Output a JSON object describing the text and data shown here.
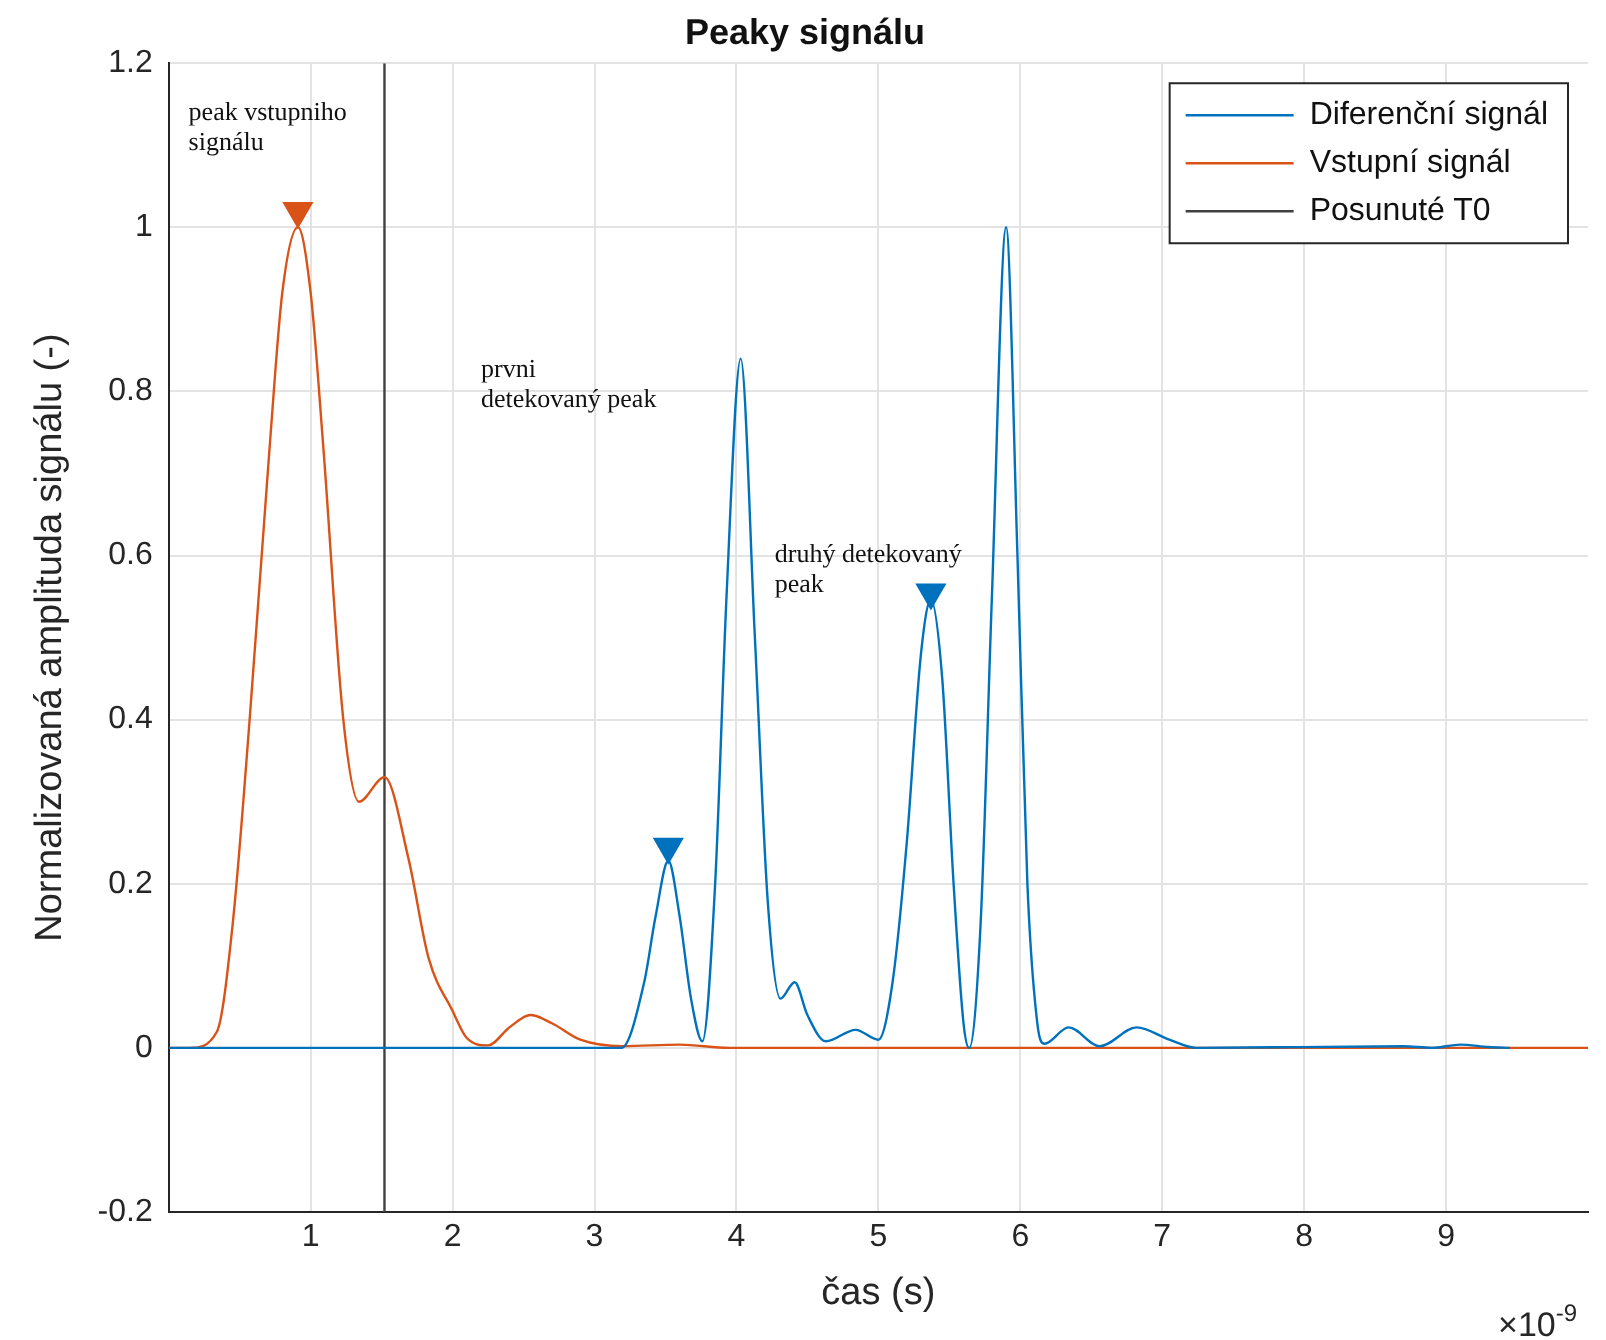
{
  "chart_data": {
    "type": "line",
    "title": "Peaky signálu",
    "xlabel": "čas (s)",
    "ylabel": "Normalizovaná amplituda signálu (-)",
    "xlim": [
      0,
      10
    ],
    "xticks": [
      1,
      2,
      3,
      4,
      5,
      6,
      7,
      8,
      9
    ],
    "ylim": [
      -0.2,
      1.2
    ],
    "yticks": [
      -0.2,
      0,
      0.2,
      0.4,
      0.6,
      0.8,
      1,
      1.2
    ],
    "grid": true,
    "legend": "top right",
    "line_style": "solid",
    "annotations": [
      "peak vstupniho\nsignálu",
      "prvni\ndetekovaný peak",
      "druhý detekovaný\npeak",
      "×10$^{-9}$"
    ],
    "series": [
      {
        "name": "Diferenční signál",
        "color": "#0072bd",
        "x": [
          0,
          3.19,
          3.35,
          3.43,
          3.52,
          3.6,
          3.68,
          3.76,
          3.85,
          3.93,
          4.03,
          4.13,
          4.22,
          4.31,
          4.41,
          4.5,
          4.63,
          4.84,
          5.0,
          5.1,
          5.2,
          5.3,
          5.37,
          5.45,
          5.53,
          5.6,
          5.64,
          5.72,
          5.8,
          5.9,
          5.98,
          6.05,
          6.12,
          6.17,
          6.34,
          6.56,
          6.82,
          7.05,
          7.24,
          8.7,
          8.9,
          9.1,
          9.3,
          9.45
        ],
        "values": [
          0,
          0,
          0.08,
          0.16,
          0.228,
          0.16,
          0.06,
          0.008,
          0.2,
          0.55,
          0.84,
          0.5,
          0.18,
          0.06,
          0.08,
          0.04,
          0.008,
          0.022,
          0.01,
          0.08,
          0.25,
          0.48,
          0.546,
          0.45,
          0.2,
          0.03,
          0,
          0.15,
          0.55,
          1,
          0.6,
          0.2,
          0.03,
          0.005,
          0.025,
          0.002,
          0.025,
          0.01,
          0,
          0.002,
          0,
          0.004,
          0.001,
          0
        ]
      },
      {
        "name": "Vstupní signál",
        "color": "#d95319",
        "x": [
          0,
          0.15,
          0.34,
          0.45,
          0.57,
          0.71,
          0.8,
          0.91,
          1.0,
          1.09,
          1.23,
          1.34,
          1.52,
          1.69,
          1.83,
          2.0,
          2.1,
          2.25,
          2.4,
          2.55,
          2.7,
          2.9,
          3.2,
          3.6,
          3.95,
          10
        ],
        "values": [
          0,
          0,
          0.02,
          0.15,
          0.4,
          0.73,
          0.92,
          1.0,
          0.92,
          0.73,
          0.4,
          0.3,
          0.33,
          0.23,
          0.11,
          0.045,
          0.012,
          0.003,
          0.025,
          0.04,
          0.03,
          0.01,
          0.002,
          0.004,
          0,
          0
        ]
      },
      {
        "name": "Posunuté T0",
        "color": "#404040",
        "x": [
          1.52,
          1.52
        ],
        "values": [
          -0.2,
          1.2
        ]
      },
      {
        "type": "scatter",
        "marker": "triangle",
        "color": "#d95319",
        "x": [
          0.91
        ],
        "values": [
          1.02
        ]
      },
      {
        "type": "scatter",
        "marker": "triangle",
        "color": "#0072bd",
        "x": [
          3.52,
          5.37
        ],
        "values": [
          0.245,
          0.555
        ]
      }
    ]
  }
}
